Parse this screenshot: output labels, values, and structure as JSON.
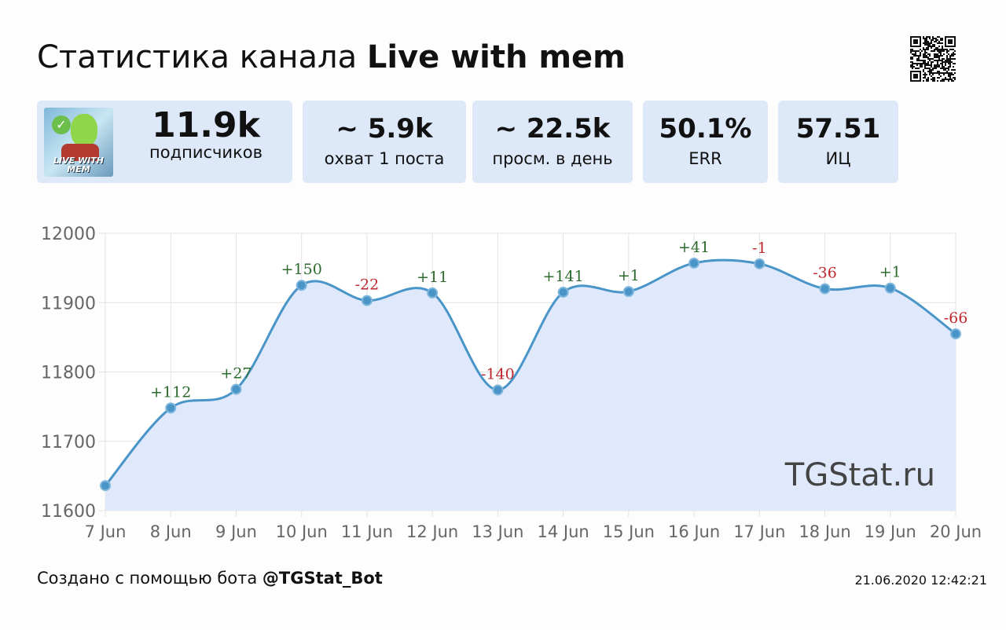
{
  "header": {
    "title_prefix": "Статистика канала",
    "channel_name": "Live with mem"
  },
  "stats": [
    {
      "value": "11.9k",
      "label": "подписчиков"
    },
    {
      "value": "~ 5.9k",
      "label": "охват 1 поста"
    },
    {
      "value": "~ 22.5k",
      "label": "просм. в день"
    },
    {
      "value": "50.1%",
      "label": "ERR"
    },
    {
      "value": "57.51",
      "label": "ИЦ"
    }
  ],
  "avatar_text": "LIVE WITH MEM",
  "chart_data": {
    "type": "area",
    "title": "",
    "xlabel": "",
    "ylabel": "",
    "categories": [
      "7 Jun",
      "8 Jun",
      "9 Jun",
      "10 Jun",
      "11 Jun",
      "12 Jun",
      "13 Jun",
      "14 Jun",
      "15 Jun",
      "16 Jun",
      "17 Jun",
      "18 Jun",
      "19 Jun",
      "20 Jun"
    ],
    "values": [
      11636,
      11748,
      11775,
      11925,
      11903,
      11914,
      11774,
      11915,
      11916,
      11957,
      11956,
      11920,
      11921,
      11855
    ],
    "labels": [
      "",
      "+112",
      "+27",
      "+150",
      "-22",
      "+11",
      "-140",
      "+141",
      "+1",
      "+41",
      "-1",
      "-36",
      "+1",
      "-66"
    ],
    "ylim": [
      11600,
      12000
    ],
    "yticks": [
      11600,
      11700,
      11800,
      11900,
      12000
    ],
    "grid": true,
    "watermark": "TGStat.ru",
    "colors": {
      "line": "#4a95c8",
      "fill": "#dfe9fb",
      "positive": "#2e6b2e",
      "negative": "#c0282d"
    }
  },
  "footer": {
    "text": "Создано с помощью бота",
    "bot": "@TGStat_Bot",
    "timestamp": "21.06.2020 12:42:21"
  }
}
